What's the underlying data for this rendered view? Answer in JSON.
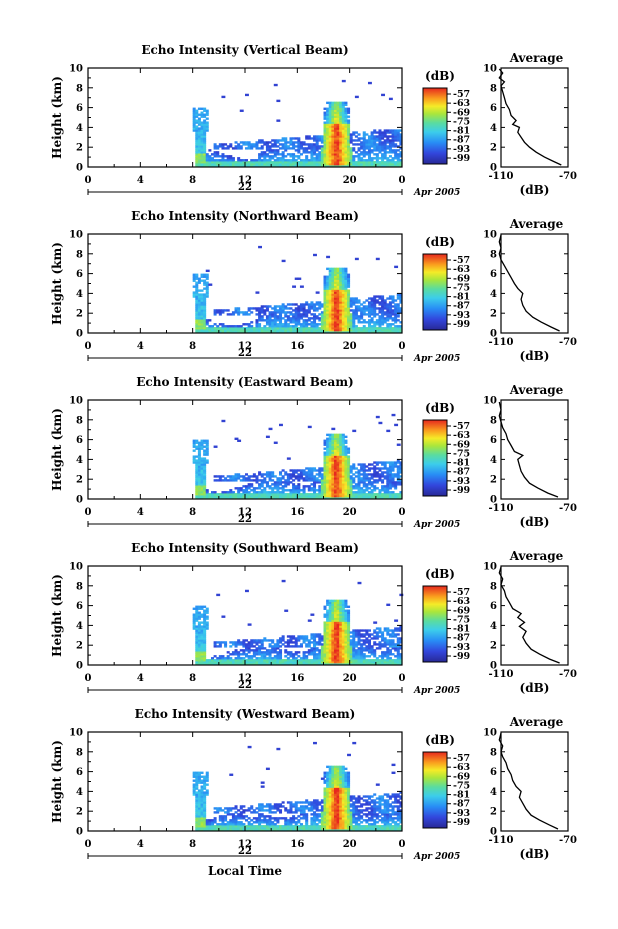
{
  "chart_data": [
    {
      "type": "heatmap",
      "title": "Echo Intensity (Vertical Beam)",
      "ylabel": "Height (km)",
      "xlim": [
        0,
        24
      ],
      "x_ticks": [
        "0",
        "4",
        "8",
        "12",
        "16",
        "20",
        "0"
      ],
      "ylim": [
        0,
        10
      ],
      "y_ticks": [
        "0",
        "2",
        "4",
        "6",
        "8",
        "10"
      ],
      "date_day": "22",
      "date_month_year": "Apr 2005",
      "colorbar": {
        "unit": "(dB)",
        "ticks": [
          "-57",
          "-63",
          "-69",
          "-75",
          "-81",
          "-87",
          "-93",
          "-99"
        ]
      },
      "features": [
        {
          "x": 8.6,
          "base": 0.5,
          "top": 6.0,
          "core": 1.5
        },
        {
          "x": 19.0,
          "base": 0.3,
          "top": 6.5,
          "core": 4.5
        }
      ],
      "average": {
        "title": "Average",
        "xlabel": "(dB)",
        "xlim": [
          -110,
          -70
        ],
        "x_ticks": [
          "-110",
          "-70"
        ],
        "ylim": [
          0,
          10
        ],
        "y_ticks": [
          "0",
          "2",
          "4",
          "6",
          "8",
          "10"
        ],
        "profile": [
          [
            -74,
            0.2
          ],
          [
            -79,
            0.6
          ],
          [
            -84,
            1.0
          ],
          [
            -89,
            1.5
          ],
          [
            -93,
            2.0
          ],
          [
            -96,
            2.5
          ],
          [
            -98,
            3.0
          ],
          [
            -100,
            3.5
          ],
          [
            -99,
            4.0
          ],
          [
            -103,
            4.3
          ],
          [
            -101,
            4.7
          ],
          [
            -104,
            5.2
          ],
          [
            -105,
            5.8
          ],
          [
            -107,
            6.4
          ],
          [
            -108,
            7.0
          ],
          [
            -109,
            7.6
          ],
          [
            -110,
            8.2
          ],
          [
            -108,
            8.6
          ],
          [
            -111,
            9.0
          ],
          [
            -109,
            9.5
          ],
          [
            -111,
            9.9
          ]
        ]
      }
    },
    {
      "type": "heatmap",
      "title": "Echo Intensity (Northward Beam)",
      "ylabel": "Height (km)",
      "xlim": [
        0,
        24
      ],
      "x_ticks": [
        "0",
        "4",
        "8",
        "12",
        "16",
        "20",
        "0"
      ],
      "ylim": [
        0,
        10
      ],
      "y_ticks": [
        "0",
        "2",
        "4",
        "6",
        "8",
        "10"
      ],
      "date_day": "22",
      "date_month_year": "Apr 2005",
      "colorbar": {
        "unit": "(dB)",
        "ticks": [
          "-57",
          "-63",
          "-69",
          "-75",
          "-81",
          "-87",
          "-93",
          "-99"
        ]
      },
      "features": [
        {
          "x": 8.6,
          "base": 0.5,
          "top": 6.0,
          "core": 1.5
        },
        {
          "x": 19.0,
          "base": 0.3,
          "top": 6.5,
          "core": 4.5
        }
      ],
      "average": {
        "title": "Average",
        "xlabel": "(dB)",
        "xlim": [
          -110,
          -70
        ],
        "x_ticks": [
          "-110",
          "-70"
        ],
        "ylim": [
          0,
          10
        ],
        "y_ticks": [
          "0",
          "2",
          "4",
          "6",
          "8",
          "10"
        ],
        "profile": [
          [
            -75,
            0.2
          ],
          [
            -80,
            0.6
          ],
          [
            -86,
            1.1
          ],
          [
            -91,
            1.6
          ],
          [
            -95,
            2.2
          ],
          [
            -97,
            2.8
          ],
          [
            -98,
            3.4
          ],
          [
            -97,
            4.0
          ],
          [
            -100,
            4.5
          ],
          [
            -102,
            5.0
          ],
          [
            -104,
            5.6
          ],
          [
            -106,
            6.2
          ],
          [
            -108,
            6.8
          ],
          [
            -110,
            7.4
          ],
          [
            -111,
            8.0
          ],
          [
            -110,
            8.6
          ],
          [
            -111,
            9.2
          ],
          [
            -110,
            9.9
          ]
        ]
      }
    },
    {
      "type": "heatmap",
      "title": "Echo Intensity (Eastward Beam)",
      "ylabel": "Height (km)",
      "xlim": [
        0,
        24
      ],
      "x_ticks": [
        "0",
        "4",
        "8",
        "12",
        "16",
        "20",
        "0"
      ],
      "ylim": [
        0,
        10
      ],
      "y_ticks": [
        "0",
        "2",
        "4",
        "6",
        "8",
        "10"
      ],
      "date_day": "22",
      "date_month_year": "Apr 2005",
      "colorbar": {
        "unit": "(dB)",
        "ticks": [
          "-57",
          "-63",
          "-69",
          "-75",
          "-81",
          "-87",
          "-93",
          "-99"
        ]
      },
      "features": [
        {
          "x": 8.6,
          "base": 0.5,
          "top": 6.0,
          "core": 1.5
        },
        {
          "x": 19.0,
          "base": 0.3,
          "top": 6.5,
          "core": 4.5
        }
      ],
      "average": {
        "title": "Average",
        "xlabel": "(dB)",
        "xlim": [
          -110,
          -70
        ],
        "x_ticks": [
          "-110",
          "-70"
        ],
        "ylim": [
          0,
          10
        ],
        "y_ticks": [
          "0",
          "2",
          "4",
          "6",
          "8",
          "10"
        ],
        "profile": [
          [
            -76,
            0.2
          ],
          [
            -82,
            0.6
          ],
          [
            -88,
            1.1
          ],
          [
            -93,
            1.6
          ],
          [
            -96,
            2.2
          ],
          [
            -98,
            2.8
          ],
          [
            -99,
            3.4
          ],
          [
            -100,
            4.0
          ],
          [
            -97,
            4.4
          ],
          [
            -102,
            4.8
          ],
          [
            -104,
            5.4
          ],
          [
            -106,
            6.0
          ],
          [
            -107,
            6.6
          ],
          [
            -109,
            7.2
          ],
          [
            -110,
            7.8
          ],
          [
            -111,
            8.4
          ],
          [
            -110,
            9.0
          ],
          [
            -111,
            9.8
          ]
        ]
      }
    },
    {
      "type": "heatmap",
      "title": "Echo Intensity (Southward Beam)",
      "ylabel": "Height (km)",
      "xlim": [
        0,
        24
      ],
      "x_ticks": [
        "0",
        "4",
        "8",
        "12",
        "16",
        "20",
        "0"
      ],
      "ylim": [
        0,
        10
      ],
      "y_ticks": [
        "0",
        "2",
        "4",
        "6",
        "8",
        "10"
      ],
      "date_day": "22",
      "date_month_year": "Apr 2005",
      "colorbar": {
        "unit": "(dB)",
        "ticks": [
          "-57",
          "-63",
          "-69",
          "-75",
          "-81",
          "-87",
          "-93",
          "-99"
        ]
      },
      "features": [
        {
          "x": 8.6,
          "base": 0.5,
          "top": 6.0,
          "core": 1.5
        },
        {
          "x": 19.0,
          "base": 0.3,
          "top": 6.5,
          "core": 4.5
        }
      ],
      "average": {
        "title": "Average",
        "xlabel": "(dB)",
        "xlim": [
          -110,
          -70
        ],
        "x_ticks": [
          "-110",
          "-70"
        ],
        "ylim": [
          0,
          10
        ],
        "y_ticks": [
          "0",
          "2",
          "4",
          "6",
          "8",
          "10"
        ],
        "profile": [
          [
            -75,
            0.2
          ],
          [
            -81,
            0.6
          ],
          [
            -87,
            1.1
          ],
          [
            -92,
            1.6
          ],
          [
            -95,
            2.2
          ],
          [
            -97,
            2.8
          ],
          [
            -95,
            3.4
          ],
          [
            -99,
            3.9
          ],
          [
            -96,
            4.3
          ],
          [
            -100,
            4.8
          ],
          [
            -98,
            5.2
          ],
          [
            -103,
            5.7
          ],
          [
            -105,
            6.3
          ],
          [
            -107,
            6.9
          ],
          [
            -108,
            7.5
          ],
          [
            -110,
            8.1
          ],
          [
            -109,
            8.7
          ],
          [
            -111,
            9.3
          ],
          [
            -110,
            9.9
          ]
        ]
      }
    },
    {
      "type": "heatmap",
      "title": "Echo Intensity (Westward Beam)",
      "ylabel": "Height (km)",
      "xlabel": "Local Time",
      "xlim": [
        0,
        24
      ],
      "x_ticks": [
        "0",
        "4",
        "8",
        "12",
        "16",
        "20",
        "0"
      ],
      "ylim": [
        0,
        10
      ],
      "y_ticks": [
        "0",
        "2",
        "4",
        "6",
        "8",
        "10"
      ],
      "date_day": "22",
      "date_month_year": "Apr 2005",
      "colorbar": {
        "unit": "(dB)",
        "ticks": [
          "-57",
          "-63",
          "-69",
          "-75",
          "-81",
          "-87",
          "-93",
          "-99"
        ]
      },
      "features": [
        {
          "x": 8.6,
          "base": 0.5,
          "top": 6.0,
          "core": 1.5
        },
        {
          "x": 19.0,
          "base": 0.3,
          "top": 6.5,
          "core": 4.5
        }
      ],
      "average": {
        "title": "Average",
        "xlabel": "(dB)",
        "xlim": [
          -110,
          -70
        ],
        "x_ticks": [
          "-110",
          "-70"
        ],
        "ylim": [
          0,
          10
        ],
        "y_ticks": [
          "0",
          "2",
          "4",
          "6",
          "8",
          "10"
        ],
        "profile": [
          [
            -76,
            0.2
          ],
          [
            -81,
            0.6
          ],
          [
            -87,
            1.1
          ],
          [
            -92,
            1.6
          ],
          [
            -95,
            2.2
          ],
          [
            -97,
            2.8
          ],
          [
            -99,
            3.4
          ],
          [
            -98,
            4.0
          ],
          [
            -101,
            4.5
          ],
          [
            -103,
            5.1
          ],
          [
            -104,
            5.7
          ],
          [
            -106,
            6.3
          ],
          [
            -107,
            6.9
          ],
          [
            -109,
            7.5
          ],
          [
            -110,
            8.0
          ],
          [
            -109,
            8.6
          ],
          [
            -111,
            9.2
          ],
          [
            -110,
            9.9
          ]
        ]
      }
    }
  ]
}
